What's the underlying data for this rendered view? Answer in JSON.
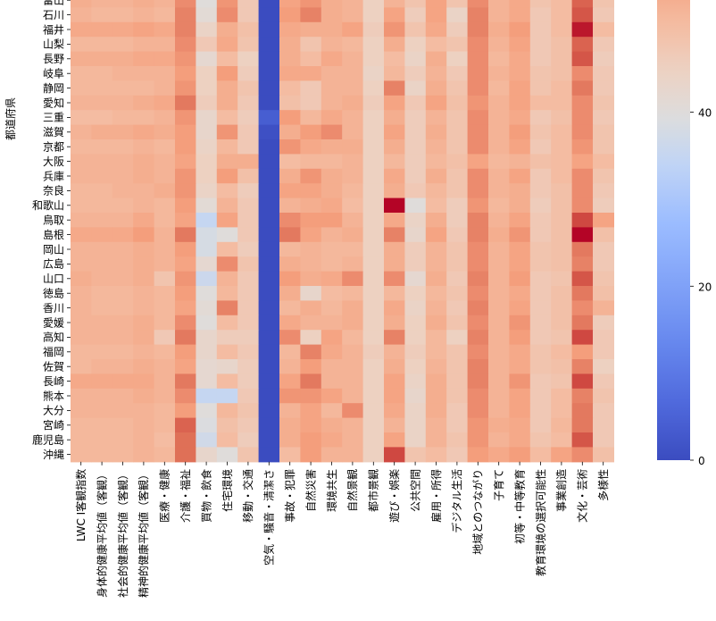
{
  "chart_data": {
    "type": "heatmap",
    "title": "",
    "ylabel": "都道府県",
    "xlabel": "",
    "colormap": "coolwarm",
    "color_range": [
      0,
      68
    ],
    "colorbar_ticks": [
      0,
      20,
      40,
      60
    ],
    "rows": [
      "富山",
      "石川",
      "福井",
      "山梨",
      "長野",
      "岐阜",
      "静岡",
      "愛知",
      "三重",
      "滋賀",
      "京都",
      "大阪",
      "兵庫",
      "奈良",
      "和歌山",
      "鳥取",
      "島根",
      "岡山",
      "広島",
      "山口",
      "徳島",
      "香川",
      "愛媛",
      "高知",
      "福岡",
      "佐賀",
      "長崎",
      "熊本",
      "大分",
      "宮崎",
      "鹿児島",
      "沖縄"
    ],
    "columns": [
      "LWC I客観指数",
      "身体的健康平均値（客観）",
      "社会的健康平均値（客観）",
      "精神的健康平均値（客観）",
      "医療・健康",
      "介護・福祉",
      "買物・飲食",
      "住宅環境",
      "移動・交通",
      "空気・騒音・清潔さ",
      "事故・犯罪",
      "自然災害",
      "環境共生",
      "自然景観",
      "都市景観",
      "遊び・娯楽",
      "公共空間",
      "雇用・所得",
      "デジタル生活",
      "地域とのつながり",
      "子育て",
      "初等・中等教育",
      "教育環境の選択可能性",
      "事業創造",
      "文化・芸術",
      "多様性"
    ],
    "values": [
      [
        53,
        52,
        52,
        53,
        52,
        58,
        40,
        57,
        47,
        0,
        55,
        57,
        53,
        52,
        45,
        52,
        48,
        55,
        48,
        58,
        52,
        54,
        48,
        50,
        62,
        48
      ],
      [
        52,
        51,
        51,
        52,
        51,
        59,
        41,
        58,
        47,
        0,
        56,
        59,
        53,
        52,
        45,
        55,
        46,
        55,
        44,
        59,
        52,
        54,
        47,
        50,
        63,
        47
      ],
      [
        54,
        54,
        54,
        55,
        54,
        59,
        44,
        53,
        49,
        0,
        54,
        53,
        53,
        55,
        46,
        57,
        48,
        54,
        46,
        59,
        53,
        56,
        47,
        50,
        67,
        50
      ],
      [
        51,
        51,
        51,
        52,
        52,
        58,
        47,
        54,
        48,
        0,
        53,
        48,
        52,
        51,
        45,
        53,
        45,
        50,
        48,
        58,
        52,
        55,
        47,
        49,
        62,
        47
      ],
      [
        53,
        53,
        53,
        54,
        54,
        57,
        42,
        50,
        45,
        0,
        53,
        50,
        54,
        52,
        45,
        50,
        44,
        53,
        45,
        58,
        51,
        54,
        47,
        49,
        63,
        46
      ],
      [
        51,
        51,
        52,
        52,
        52,
        56,
        45,
        56,
        46,
        0,
        54,
        54,
        52,
        52,
        44,
        51,
        46,
        52,
        47,
        58,
        52,
        54,
        48,
        49,
        58,
        47
      ],
      [
        51,
        51,
        51,
        51,
        52,
        57,
        45,
        53,
        48,
        0,
        50,
        47,
        52,
        52,
        45,
        59,
        44,
        53,
        48,
        58,
        51,
        55,
        48,
        50,
        60,
        47
      ],
      [
        52,
        52,
        52,
        53,
        54,
        60,
        46,
        53,
        47,
        0,
        49,
        47,
        52,
        53,
        46,
        55,
        47,
        55,
        49,
        57,
        52,
        55,
        50,
        50,
        58,
        48
      ],
      [
        50,
        50,
        51,
        51,
        52,
        57,
        43,
        50,
        46,
        4,
        56,
        51,
        54,
        52,
        45,
        53,
        46,
        52,
        48,
        58,
        52,
        54,
        47,
        49,
        58,
        47
      ],
      [
        52,
        53,
        53,
        54,
        53,
        56,
        43,
        57,
        47,
        1,
        53,
        56,
        58,
        52,
        45,
        55,
        46,
        53,
        48,
        58,
        52,
        56,
        48,
        50,
        58,
        48
      ],
      [
        51,
        51,
        51,
        52,
        51,
        56,
        44,
        51,
        47,
        0,
        57,
        54,
        53,
        53,
        45,
        53,
        46,
        52,
        48,
        58,
        52,
        55,
        47,
        50,
        57,
        48
      ],
      [
        52,
        52,
        52,
        53,
        52,
        55,
        45,
        53,
        53,
        0,
        50,
        51,
        51,
        52,
        45,
        51,
        46,
        51,
        49,
        55,
        51,
        52,
        49,
        50,
        55,
        50
      ],
      [
        52,
        52,
        52,
        53,
        52,
        57,
        45,
        56,
        49,
        0,
        53,
        57,
        53,
        52,
        45,
        54,
        46,
        53,
        48,
        58,
        52,
        55,
        47,
        50,
        58,
        48
      ],
      [
        51,
        51,
        52,
        52,
        53,
        57,
        44,
        50,
        46,
        0,
        55,
        55,
        53,
        51,
        45,
        53,
        47,
        51,
        48,
        58,
        52,
        53,
        47,
        49,
        58,
        47
      ],
      [
        51,
        51,
        51,
        52,
        51,
        56,
        41,
        52,
        47,
        0,
        52,
        53,
        54,
        50,
        45,
        68,
        40,
        50,
        46,
        57,
        51,
        53,
        46,
        49,
        58,
        46
      ],
      [
        52,
        52,
        52,
        54,
        51,
        55,
        35,
        55,
        47,
        0,
        58,
        56,
        56,
        52,
        45,
        54,
        44,
        53,
        46,
        59,
        52,
        55,
        47,
        49,
        64,
        55
      ],
      [
        54,
        54,
        54,
        56,
        52,
        60,
        38,
        40,
        47,
        0,
        60,
        55,
        52,
        53,
        45,
        59,
        43,
        55,
        47,
        59,
        53,
        57,
        47,
        49,
        70,
        49
      ],
      [
        52,
        52,
        52,
        53,
        52,
        56,
        38,
        50,
        46,
        0,
        51,
        52,
        51,
        51,
        45,
        53,
        46,
        52,
        48,
        58,
        52,
        55,
        48,
        49,
        60,
        47
      ],
      [
        52,
        52,
        52,
        53,
        52,
        55,
        42,
        58,
        48,
        0,
        53,
        52,
        51,
        52,
        45,
        53,
        46,
        52,
        48,
        58,
        52,
        55,
        48,
        49,
        59,
        47
      ],
      [
        53,
        52,
        52,
        53,
        48,
        57,
        36,
        52,
        47,
        0,
        56,
        53,
        54,
        58,
        45,
        58,
        42,
        53,
        47,
        59,
        52,
        56,
        47,
        48,
        63,
        48
      ],
      [
        52,
        51,
        51,
        52,
        51,
        56,
        40,
        51,
        47,
        0,
        53,
        43,
        50,
        51,
        45,
        51,
        45,
        51,
        48,
        58,
        52,
        54,
        47,
        49,
        60,
        49
      ],
      [
        52,
        51,
        51,
        52,
        51,
        55,
        41,
        59,
        47,
        0,
        51,
        53,
        51,
        53,
        45,
        54,
        44,
        52,
        47,
        59,
        52,
        55,
        47,
        49,
        58,
        52
      ],
      [
        52,
        52,
        52,
        53,
        51,
        58,
        40,
        50,
        47,
        0,
        54,
        52,
        52,
        53,
        45,
        53,
        45,
        53,
        48,
        58,
        52,
        57,
        47,
        49,
        60,
        46
      ],
      [
        52,
        52,
        52,
        53,
        47,
        60,
        43,
        46,
        46,
        0,
        58,
        45,
        55,
        51,
        45,
        59,
        45,
        51,
        45,
        59,
        52,
        56,
        47,
        48,
        64,
        47
      ],
      [
        51,
        51,
        51,
        52,
        51,
        56,
        43,
        50,
        47,
        0,
        51,
        59,
        54,
        52,
        46,
        52,
        46,
        51,
        48,
        58,
        52,
        54,
        48,
        50,
        56,
        47
      ],
      [
        51,
        52,
        52,
        53,
        52,
        55,
        42,
        43,
        46,
        0,
        52,
        56,
        52,
        52,
        45,
        53,
        45,
        52,
        48,
        59,
        52,
        54,
        48,
        49,
        59,
        45
      ],
      [
        54,
        54,
        54,
        54,
        52,
        60,
        42,
        50,
        46,
        0,
        55,
        60,
        52,
        52,
        45,
        55,
        44,
        53,
        48,
        59,
        52,
        57,
        47,
        48,
        64,
        47
      ],
      [
        52,
        52,
        52,
        53,
        52,
        58,
        35,
        35,
        47,
        0,
        57,
        57,
        55,
        52,
        45,
        55,
        43,
        53,
        48,
        58,
        52,
        55,
        47,
        50,
        59,
        48
      ],
      [
        52,
        52,
        52,
        52,
        51,
        56,
        40,
        51,
        48,
        0,
        52,
        55,
        51,
        58,
        45,
        54,
        44,
        53,
        47,
        58,
        52,
        55,
        47,
        50,
        60,
        47
      ],
      [
        51,
        51,
        51,
        52,
        51,
        62,
        39,
        49,
        47,
        0,
        53,
        55,
        53,
        52,
        45,
        52,
        44,
        52,
        47,
        57,
        53,
        54,
        47,
        51,
        60,
        47
      ],
      [
        51,
        51,
        51,
        52,
        50,
        61,
        37,
        50,
        46,
        0,
        53,
        56,
        54,
        52,
        45,
        55,
        44,
        52,
        48,
        57,
        52,
        54,
        48,
        50,
        63,
        47
      ],
      [
        51,
        51,
        51,
        52,
        51,
        61,
        43,
        40,
        48,
        0,
        50,
        56,
        52,
        52,
        45,
        64,
        48,
        50,
        47,
        56,
        54,
        56,
        50,
        55,
        58,
        49
      ]
    ]
  }
}
